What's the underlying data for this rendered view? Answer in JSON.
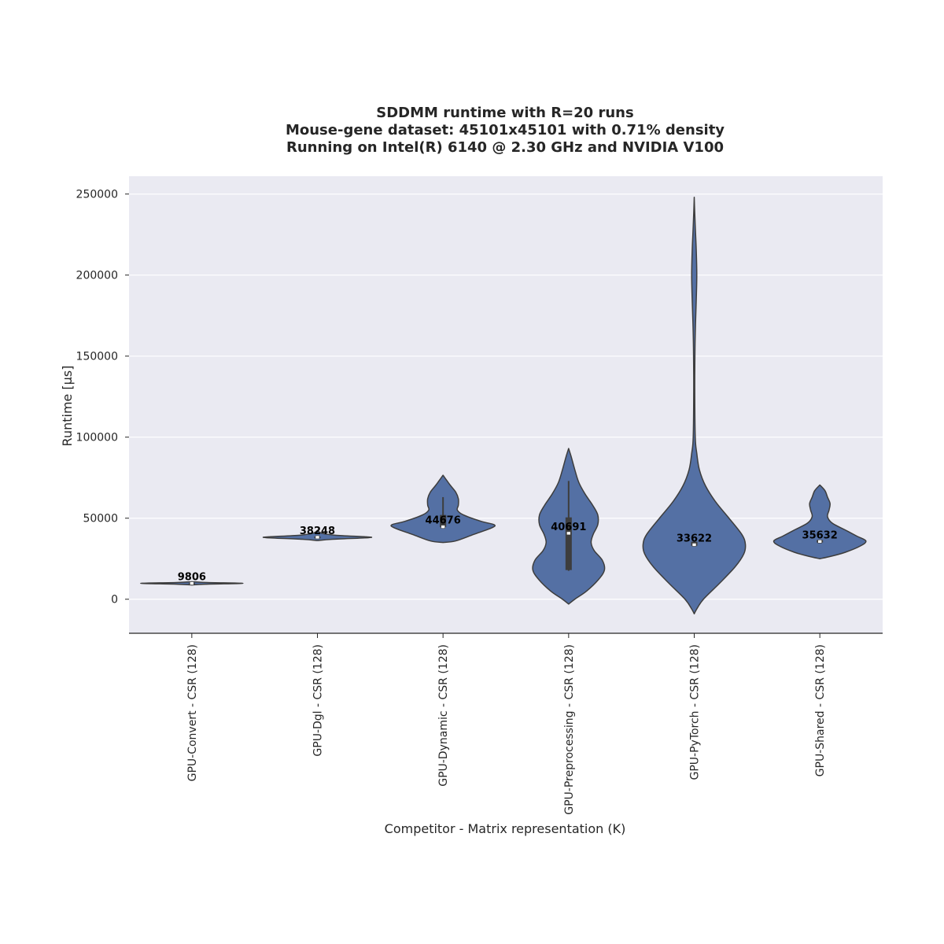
{
  "colors": {
    "plot_background": "#eaeaf2",
    "grid": "#ffffff",
    "violin_fill": "#5470a4",
    "violin_edge": "#3d3d3d",
    "box": "#3d3d3d",
    "median_marker": "#ffffff"
  },
  "chart_data": {
    "type": "violin",
    "title": [
      "SDDMM runtime with R=20 runs",
      "Mouse-gene dataset: 45101x45101 with 0.71% density",
      "Running on Intel(R) 6140 @ 2.30 GHz and NVIDIA V100"
    ],
    "xlabel": "Competitor - Matrix representation (K)",
    "ylabel": "Runtime [µs]",
    "ylim": [
      -21000,
      261000
    ],
    "yticks": [
      0,
      50000,
      100000,
      150000,
      200000,
      250000
    ],
    "grid": true,
    "categories": [
      "GPU-Convert - CSR (128)",
      "GPU-Dgl - CSR (128)",
      "GPU-Dynamic - CSR (128)",
      "GPU-Preprocessing - CSR (128)",
      "GPU-PyTorch - CSR (128)",
      "GPU-Shared - CSR (128)"
    ],
    "median_labels": [
      "9806",
      "38248",
      "44676",
      "40691",
      "33622",
      "35632"
    ],
    "violins": [
      {
        "median": 9806,
        "q1": 9700,
        "q3": 9950,
        "profile": [
          [
            8800,
            0.0
          ],
          [
            9300,
            0.3
          ],
          [
            9806,
            1.0
          ],
          [
            10300,
            0.3
          ],
          [
            10800,
            0.0
          ]
        ]
      },
      {
        "median": 38248,
        "q1": 37900,
        "q3": 38600,
        "profile": [
          [
            36200,
            0.0
          ],
          [
            37000,
            0.3
          ],
          [
            38000,
            1.0
          ],
          [
            38500,
            0.95
          ],
          [
            39500,
            0.35
          ],
          [
            40800,
            0.08
          ],
          [
            42500,
            0.0
          ]
        ]
      },
      {
        "median": 44676,
        "q1": 44500,
        "q3": 52000,
        "whisker": [
          44000,
          63000
        ],
        "profile": [
          [
            35000,
            0.0
          ],
          [
            36000,
            0.25
          ],
          [
            40000,
            0.6
          ],
          [
            44000,
            0.95
          ],
          [
            46000,
            1.0
          ],
          [
            48000,
            0.75
          ],
          [
            52000,
            0.4
          ],
          [
            55000,
            0.28
          ],
          [
            58000,
            0.3
          ],
          [
            62000,
            0.3
          ],
          [
            66000,
            0.25
          ],
          [
            70000,
            0.15
          ],
          [
            73000,
            0.08
          ],
          [
            76500,
            0.0
          ]
        ]
      },
      {
        "median": 40691,
        "q1": 18000,
        "q3": 50500,
        "whisker": [
          17500,
          73000
        ],
        "profile": [
          [
            -3000,
            0.0
          ],
          [
            0,
            0.12
          ],
          [
            5000,
            0.35
          ],
          [
            12000,
            0.58
          ],
          [
            18000,
            0.7
          ],
          [
            24000,
            0.66
          ],
          [
            30000,
            0.5
          ],
          [
            35000,
            0.44
          ],
          [
            40000,
            0.48
          ],
          [
            46000,
            0.57
          ],
          [
            52000,
            0.57
          ],
          [
            58000,
            0.47
          ],
          [
            65000,
            0.32
          ],
          [
            72000,
            0.2
          ],
          [
            80000,
            0.12
          ],
          [
            88000,
            0.05
          ],
          [
            93000,
            0.0
          ]
        ]
      },
      {
        "median": 33622,
        "q1": 33000,
        "q3": 35500,
        "profile": [
          [
            -9000,
            0.0
          ],
          [
            -6000,
            0.05
          ],
          [
            0,
            0.18
          ],
          [
            10000,
            0.5
          ],
          [
            20000,
            0.8
          ],
          [
            28000,
            0.97
          ],
          [
            34000,
            1.0
          ],
          [
            40000,
            0.93
          ],
          [
            50000,
            0.68
          ],
          [
            60000,
            0.42
          ],
          [
            70000,
            0.22
          ],
          [
            80000,
            0.1
          ],
          [
            90000,
            0.05
          ],
          [
            100000,
            0.02
          ],
          [
            130000,
            0.01
          ],
          [
            155000,
            0.015
          ],
          [
            170000,
            0.025
          ],
          [
            185000,
            0.04
          ],
          [
            200000,
            0.05
          ],
          [
            215000,
            0.04
          ],
          [
            230000,
            0.02
          ],
          [
            240000,
            0.008
          ],
          [
            248000,
            0.0
          ]
        ]
      },
      {
        "median": 35632,
        "q1": 35000,
        "q3": 36500,
        "profile": [
          [
            25000,
            0.0
          ],
          [
            26500,
            0.22
          ],
          [
            29000,
            0.5
          ],
          [
            33000,
            0.8
          ],
          [
            36000,
            0.9
          ],
          [
            39000,
            0.72
          ],
          [
            43000,
            0.48
          ],
          [
            47000,
            0.24
          ],
          [
            51000,
            0.15
          ],
          [
            55000,
            0.18
          ],
          [
            59000,
            0.2
          ],
          [
            63000,
            0.15
          ],
          [
            67000,
            0.1
          ],
          [
            70500,
            0.0
          ]
        ]
      }
    ]
  }
}
